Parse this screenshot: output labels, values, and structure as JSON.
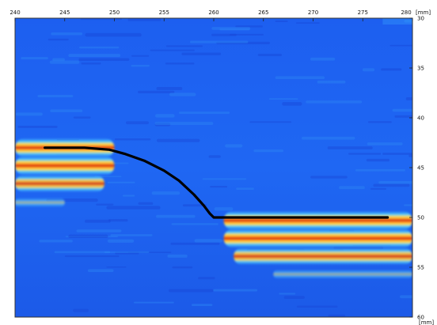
{
  "chart_data": {
    "type": "heatmap",
    "x_unit": "[mm]",
    "y_unit": "[mm]",
    "xlim": [
      240,
      280
    ],
    "ylim": [
      30,
      60
    ],
    "y_inverted": true,
    "x_ticks": [
      240,
      245,
      250,
      255,
      260,
      265,
      270,
      275,
      280
    ],
    "x_tick_labels": [
      "240",
      "245",
      "250",
      "255",
      "260",
      "265",
      "270",
      "275",
      "280"
    ],
    "y_ticks": [
      30,
      35,
      40,
      45,
      50,
      55,
      60
    ],
    "y_tick_labels": [
      "30",
      "35",
      "40",
      "45",
      "50",
      "55",
      "60"
    ],
    "colormap": [
      "#1a3fd6",
      "#1e63f2",
      "#2f8df5",
      "#4cc8ff",
      "#ffe04a",
      "#ff8a1e",
      "#e01616",
      "#8a0000"
    ],
    "background_color": "#1e63f2",
    "hot_regions": [
      {
        "x_start": 240,
        "x_end": 250,
        "y_center": 43,
        "thickness": 1.0,
        "intensity": 1.0
      },
      {
        "x_start": 240,
        "x_end": 250,
        "y_center": 44.8,
        "thickness": 1.0,
        "intensity": 1.0
      },
      {
        "x_start": 240,
        "x_end": 249,
        "y_center": 46.6,
        "thickness": 0.9,
        "intensity": 0.9
      },
      {
        "x_start": 240,
        "x_end": 245,
        "y_center": 48.5,
        "thickness": 0.5,
        "intensity": 0.45
      },
      {
        "x_start": 261,
        "x_end": 280,
        "y_center": 50.3,
        "thickness": 1.0,
        "intensity": 1.0
      },
      {
        "x_start": 261,
        "x_end": 280,
        "y_center": 52.1,
        "thickness": 1.0,
        "intensity": 1.0
      },
      {
        "x_start": 262,
        "x_end": 280,
        "y_center": 53.9,
        "thickness": 0.9,
        "intensity": 0.9
      },
      {
        "x_start": 266,
        "x_end": 280,
        "y_center": 55.7,
        "thickness": 0.5,
        "intensity": 0.4
      }
    ],
    "series": [
      {
        "type": "line",
        "color": "#000000",
        "x": [
          243.0,
          247.0,
          249.5,
          251.0,
          253.0,
          255.0,
          256.5,
          258.0,
          259.0,
          259.6,
          260.0,
          263.0,
          267.0,
          271.0,
          275.0,
          277.5
        ],
        "y": [
          43.0,
          43.0,
          43.2,
          43.6,
          44.3,
          45.3,
          46.3,
          47.7,
          48.8,
          49.6,
          50.0,
          50.0,
          50.0,
          50.0,
          50.0,
          50.0
        ]
      }
    ]
  }
}
